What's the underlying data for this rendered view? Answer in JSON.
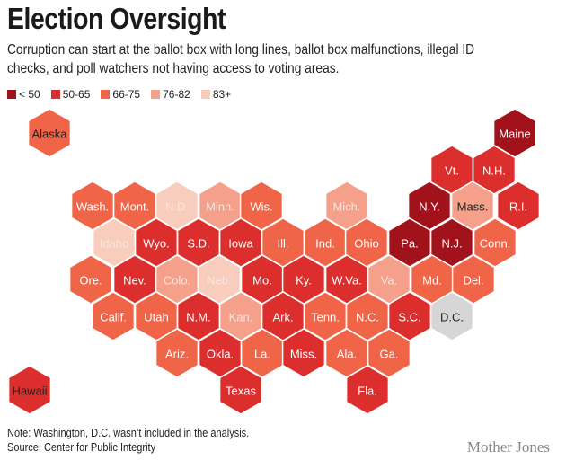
{
  "title": "Election Oversight",
  "subtitle": "Corruption can start at the ballot box with long lines, ballot box malfunctions, illegal ID checks, and poll watchers not having access to voting areas.",
  "legend": [
    {
      "label": "< 50",
      "color": "#a1121a"
    },
    {
      "label": "50-65",
      "color": "#dc2e2c"
    },
    {
      "label": "66-75",
      "color": "#f06448"
    },
    {
      "label": "76-82",
      "color": "#f5a08a"
    },
    {
      "label": "83+",
      "color": "#f9cdbd"
    }
  ],
  "no_data_color": "#d6d6d6",
  "states": [
    {
      "label": "Alaska",
      "bin": 2
    },
    {
      "label": "Maine",
      "bin": 0
    },
    {
      "label": "Vt.",
      "bin": 1
    },
    {
      "label": "N.H.",
      "bin": 1
    },
    {
      "label": "Wash.",
      "bin": 2
    },
    {
      "label": "Mont.",
      "bin": 2
    },
    {
      "label": "N.D.",
      "bin": 4
    },
    {
      "label": "Minn.",
      "bin": 3
    },
    {
      "label": "Wis.",
      "bin": 2
    },
    {
      "label": "Mich.",
      "bin": 3
    },
    {
      "label": "N.Y.",
      "bin": 0
    },
    {
      "label": "Mass.",
      "bin": 3
    },
    {
      "label": "R.I.",
      "bin": 1
    },
    {
      "label": "Idaho",
      "bin": 4
    },
    {
      "label": "Wyo.",
      "bin": 1
    },
    {
      "label": "S.D.",
      "bin": 1
    },
    {
      "label": "Iowa",
      "bin": 1
    },
    {
      "label": "Ill.",
      "bin": 2
    },
    {
      "label": "Ind.",
      "bin": 2
    },
    {
      "label": "Ohio",
      "bin": 2
    },
    {
      "label": "Pa.",
      "bin": 0
    },
    {
      "label": "N.J.",
      "bin": 0
    },
    {
      "label": "Conn.",
      "bin": 2
    },
    {
      "label": "Ore.",
      "bin": 2
    },
    {
      "label": "Nev.",
      "bin": 1
    },
    {
      "label": "Colo.",
      "bin": 3
    },
    {
      "label": "Neb.",
      "bin": 4
    },
    {
      "label": "Mo.",
      "bin": 1
    },
    {
      "label": "Ky.",
      "bin": 1
    },
    {
      "label": "W.Va.",
      "bin": 1
    },
    {
      "label": "Va.",
      "bin": 3
    },
    {
      "label": "Md.",
      "bin": 2
    },
    {
      "label": "Del.",
      "bin": 2
    },
    {
      "label": "Calif.",
      "bin": 2
    },
    {
      "label": "Utah",
      "bin": 2
    },
    {
      "label": "N.M.",
      "bin": 1
    },
    {
      "label": "Kan.",
      "bin": 3
    },
    {
      "label": "Ark.",
      "bin": 1
    },
    {
      "label": "Tenn.",
      "bin": 2
    },
    {
      "label": "N.C.",
      "bin": 2
    },
    {
      "label": "S.C.",
      "bin": 1
    },
    {
      "label": "D.C.",
      "bin": -1
    },
    {
      "label": "Ariz.",
      "bin": 2
    },
    {
      "label": "Okla.",
      "bin": 1
    },
    {
      "label": "La.",
      "bin": 2
    },
    {
      "label": "Miss.",
      "bin": 1
    },
    {
      "label": "Ala.",
      "bin": 2
    },
    {
      "label": "Ga.",
      "bin": 2
    },
    {
      "label": "Hawaii",
      "bin": 1
    },
    {
      "label": "Texas",
      "bin": 1
    },
    {
      "label": "Fla.",
      "bin": 1
    }
  ],
  "note": "Note: Washington, D.C. wasn’t included in the analysis.",
  "source": "Source: Center for Public Integrity",
  "credit": "Mother Jones"
}
